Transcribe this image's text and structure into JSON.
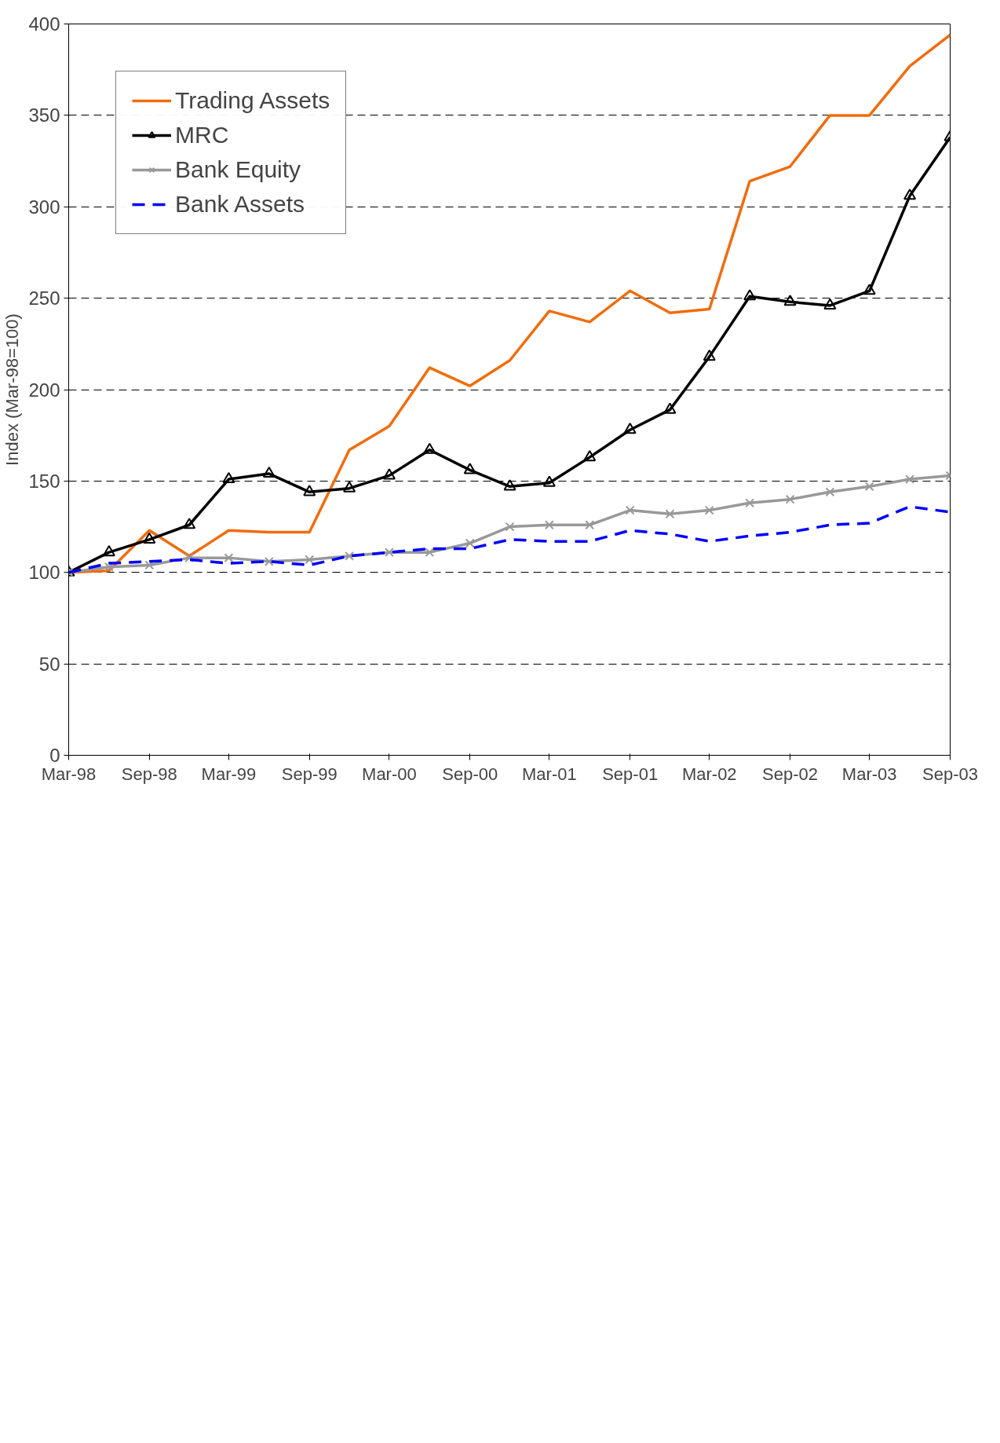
{
  "chart_data": {
    "type": "line",
    "ylabel": "Index (Mar-98=100)",
    "x": [
      "1998-03",
      "1998-06",
      "1998-09",
      "1998-12",
      "1999-03",
      "1999-06",
      "1999-09",
      "1999-12",
      "2000-03",
      "2000-06",
      "2000-09",
      "2000-12",
      "2001-03",
      "2001-06",
      "2001-09",
      "2001-12",
      "2002-03",
      "2002-06",
      "2002-09",
      "2002-12",
      "2003-03",
      "2003-06",
      "2003-09"
    ],
    "series": [
      {
        "name": "Trading Assets",
        "color": "#f26c0d",
        "marker": "none",
        "line_style": "solid",
        "values": [
          100,
          101,
          123,
          109,
          123,
          122,
          122,
          167,
          180,
          212,
          202,
          216,
          243,
          237,
          254,
          242,
          244,
          314,
          322,
          350,
          350,
          377,
          394
        ]
      },
      {
        "name": "MRC",
        "color": "#000000",
        "marker": "triangle",
        "line_style": "solid",
        "values": [
          100,
          111,
          118,
          126,
          151,
          154,
          144,
          146,
          153,
          167,
          156,
          147,
          149,
          163,
          178,
          189,
          218,
          251,
          248,
          246,
          254,
          306,
          338
        ]
      },
      {
        "name": "Bank Equity",
        "color": "#999999",
        "marker": "cross",
        "line_style": "solid",
        "values": [
          100,
          103,
          104,
          108,
          108,
          106,
          107,
          109,
          111,
          111,
          116,
          125,
          126,
          126,
          134,
          132,
          134,
          138,
          140,
          144,
          147,
          151,
          153
        ]
      },
      {
        "name": "Bank Assets",
        "color": "#0000ff",
        "marker": "none",
        "line_style": "dashed",
        "values": [
          100,
          105,
          106,
          107,
          105,
          106,
          104,
          109,
          111,
          113,
          113,
          118,
          117,
          117,
          123,
          121,
          117,
          120,
          122,
          126,
          127,
          136,
          133
        ]
      }
    ],
    "xlim": [
      "1998-03",
      "2003-09"
    ],
    "xticks": [
      {
        "value": "1998-03",
        "label": "Mar-98"
      },
      {
        "value": "1998-09",
        "label": "Sep-98"
      },
      {
        "value": "1999-03",
        "label": "Mar-99"
      },
      {
        "value": "1999-09",
        "label": "Sep-99"
      },
      {
        "value": "2000-03",
        "label": "Mar-00"
      },
      {
        "value": "2000-09",
        "label": "Sep-00"
      },
      {
        "value": "2001-03",
        "label": "Mar-01"
      },
      {
        "value": "2001-09",
        "label": "Sep-01"
      },
      {
        "value": "2002-03",
        "label": "Mar-02"
      },
      {
        "value": "2002-09",
        "label": "Sep-02"
      },
      {
        "value": "2003-03",
        "label": "Mar-03"
      },
      {
        "value": "2003-09",
        "label": "Sep-03"
      }
    ],
    "ylim": [
      0,
      400
    ],
    "yticks": [
      0,
      50,
      100,
      150,
      200,
      250,
      300,
      350,
      400
    ],
    "grid": "y",
    "legend": "top left"
  }
}
